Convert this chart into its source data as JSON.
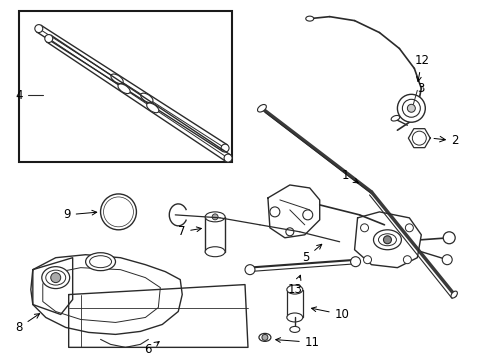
{
  "background_color": "#ffffff",
  "line_color": "#2a2a2a",
  "label_color": "#000000",
  "label_fontsize": 8.5,
  "fig_width": 4.9,
  "fig_height": 3.6,
  "dpi": 100
}
